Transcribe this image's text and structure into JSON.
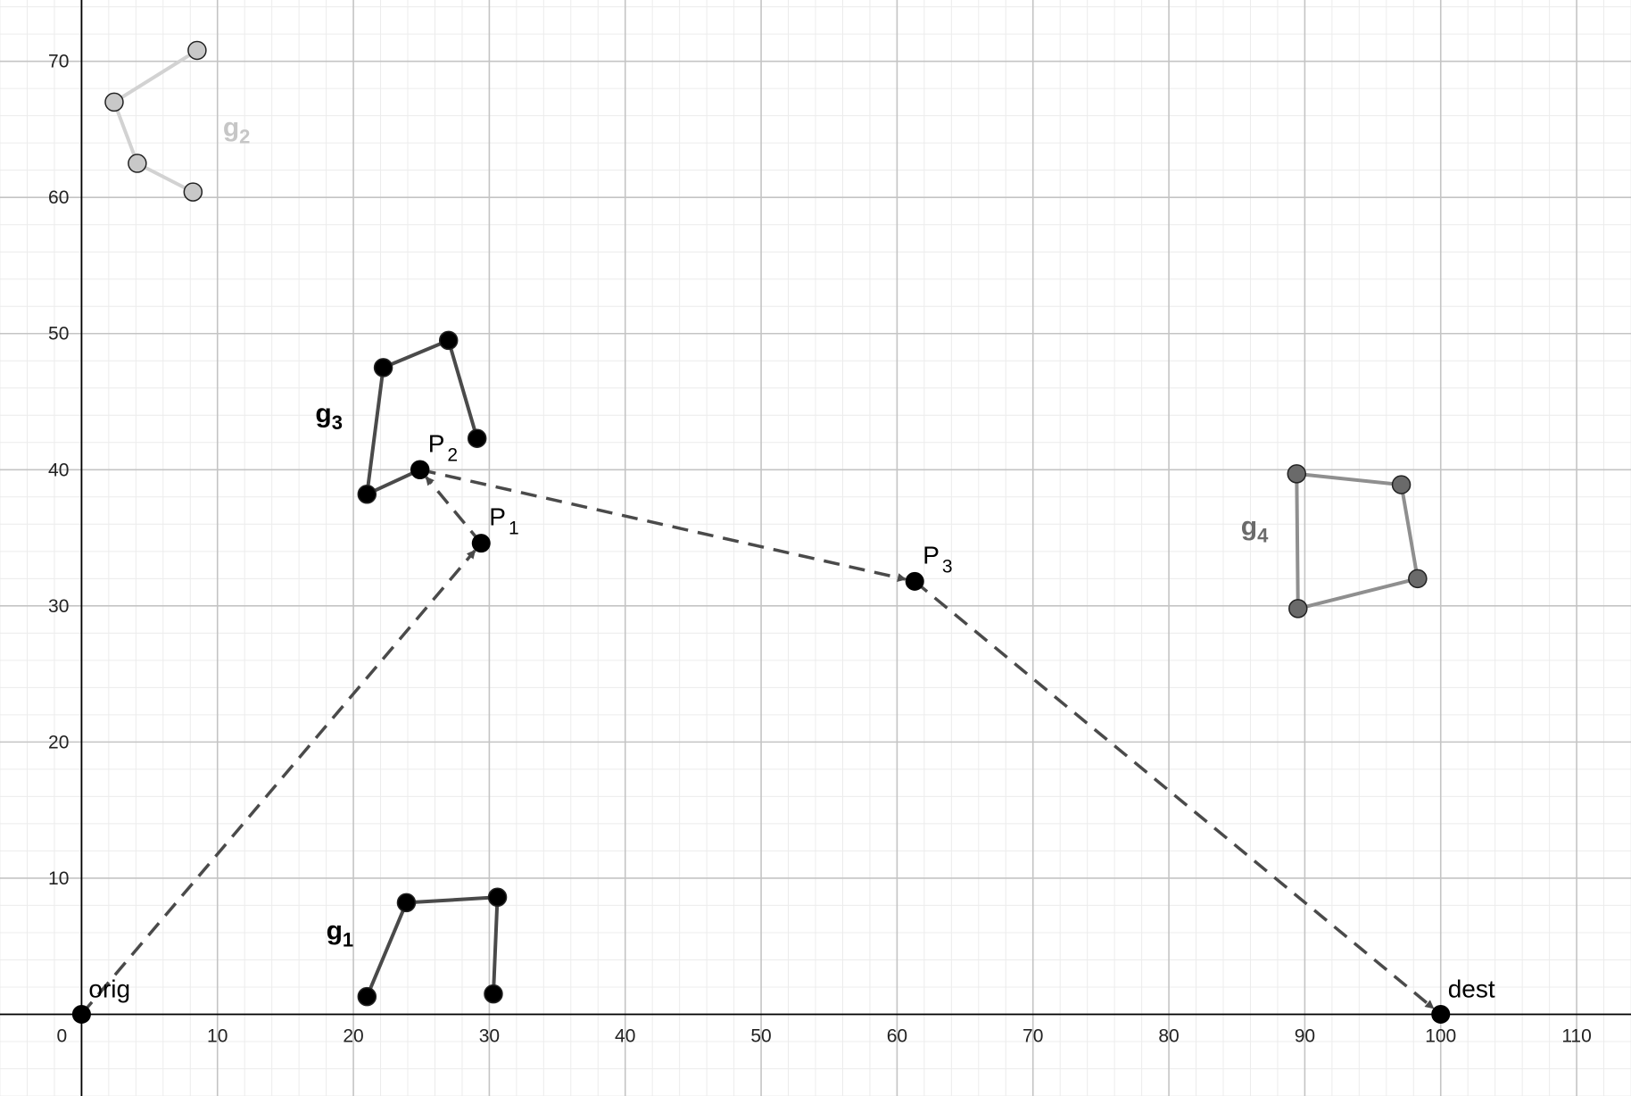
{
  "chart_data": {
    "type": "scatter",
    "xlim": [
      -6,
      114
    ],
    "ylim": [
      -6,
      74.5
    ],
    "grid": true,
    "x_ticks": [
      0,
      10,
      20,
      30,
      40,
      50,
      60,
      70,
      80,
      90,
      100,
      110
    ],
    "y_ticks": [
      10,
      20,
      30,
      40,
      50,
      60,
      70
    ],
    "origin_label": "0",
    "groups": [
      {
        "id": "g1",
        "name": "g",
        "subscript": "1",
        "color": "#4a4a4a",
        "fill": "#000000",
        "points": [
          [
            21,
            1.3
          ],
          [
            23.9,
            8.2
          ],
          [
            30.6,
            8.6
          ],
          [
            30.3,
            1.5
          ]
        ],
        "closed": false,
        "label_pos": [
          18,
          5.5
        ]
      },
      {
        "id": "g2",
        "name": "g",
        "subscript": "2",
        "color": "#d2d2d2",
        "fill": "#c8c8c8",
        "points": [
          [
            8.2,
            60.4
          ],
          [
            4.1,
            62.5
          ],
          [
            2.4,
            67
          ],
          [
            8.5,
            70.8
          ]
        ],
        "closed": false,
        "label_pos": [
          10.4,
          64.5
        ]
      },
      {
        "id": "g3",
        "name": "g",
        "subscript": "3",
        "color": "#4a4a4a",
        "fill": "#000000",
        "points": [
          [
            29.1,
            42.3
          ],
          [
            27,
            49.5
          ],
          [
            22.2,
            47.5
          ],
          [
            21,
            38.2
          ],
          [
            24.9,
            40
          ]
        ],
        "closed": false,
        "label_pos": [
          17.2,
          43.5
        ]
      },
      {
        "id": "g4",
        "name": "g",
        "subscript": "4",
        "color": "#8f8f8f",
        "fill": "#6a6a6a",
        "points": [
          [
            89.5,
            29.8
          ],
          [
            98.3,
            32
          ],
          [
            97.1,
            38.9
          ],
          [
            89.4,
            39.7
          ]
        ],
        "closed": true,
        "label_pos": [
          85.3,
          35.2
        ]
      }
    ],
    "path_points": [
      {
        "id": "orig",
        "text": "orig",
        "sub": "",
        "x": 0,
        "y": 0
      },
      {
        "id": "P1",
        "text": "P",
        "sub": "1",
        "x": 29.4,
        "y": 34.6
      },
      {
        "id": "P2",
        "text": "P",
        "sub": "2",
        "x": 24.9,
        "y": 40
      },
      {
        "id": "P3",
        "text": "P",
        "sub": "3",
        "x": 61.3,
        "y": 31.8
      },
      {
        "id": "dest",
        "text": "dest",
        "sub": "",
        "x": 100,
        "y": 0
      }
    ],
    "path_color": "#4a4a4a"
  }
}
